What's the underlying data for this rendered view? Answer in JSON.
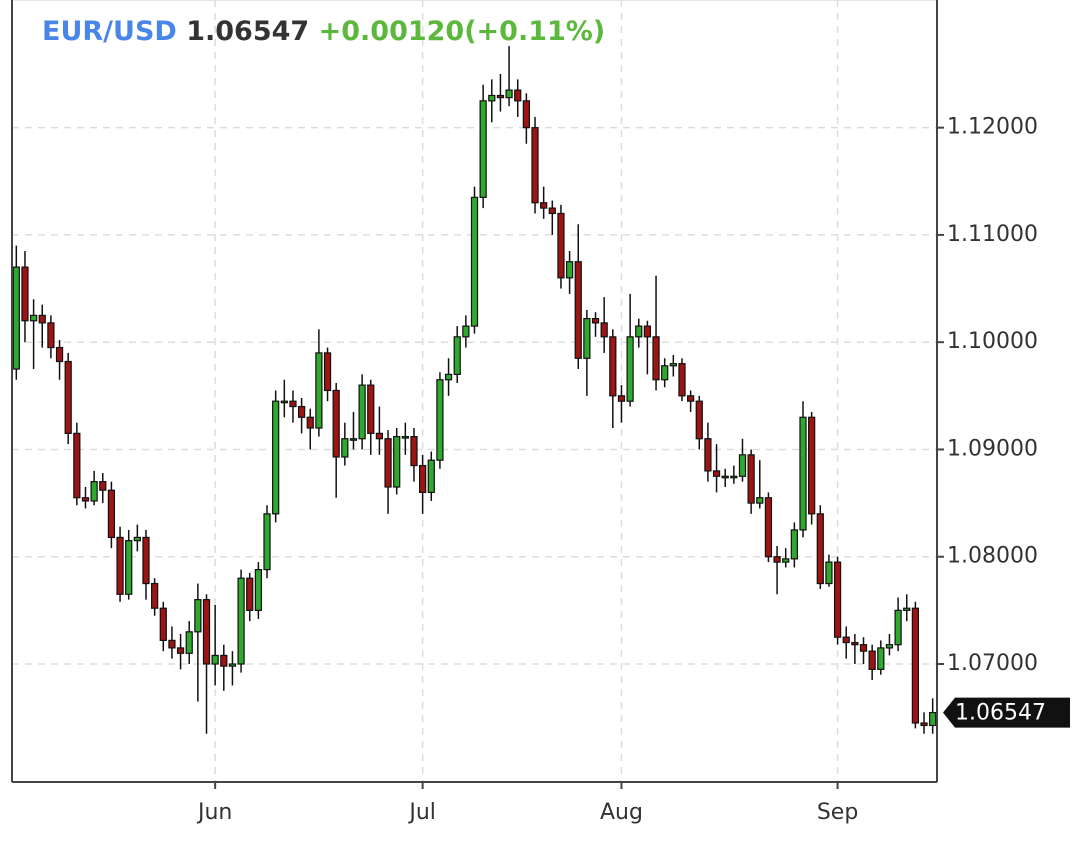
{
  "chart_data": {
    "type": "candlestick",
    "symbol": "EUR/USD",
    "last": "1.06547",
    "change": "+0.00120(+0.11%)",
    "up_color": "#2fa82f",
    "down_color": "#9c1414",
    "grid": true,
    "ylim": [
      1.059,
      1.1319
    ],
    "yticks": [
      {
        "value": 1.07,
        "label": "1.07000"
      },
      {
        "value": 1.08,
        "label": "1.08000"
      },
      {
        "value": 1.09,
        "label": "1.09000"
      },
      {
        "value": 1.1,
        "label": "1.10000"
      },
      {
        "value": 1.11,
        "label": "1.11000"
      },
      {
        "value": 1.12,
        "label": "1.12000"
      }
    ],
    "categories": [
      null,
      null,
      null,
      null,
      null,
      null,
      null,
      null,
      null,
      null,
      null,
      null,
      null,
      null,
      null,
      null,
      null,
      null,
      null,
      null,
      null,
      null,
      null,
      "Jun",
      null,
      null,
      null,
      null,
      null,
      null,
      null,
      null,
      null,
      null,
      null,
      null,
      null,
      null,
      null,
      null,
      null,
      null,
      null,
      null,
      null,
      null,
      null,
      "Jul",
      null,
      null,
      null,
      null,
      null,
      null,
      null,
      null,
      null,
      null,
      null,
      null,
      null,
      null,
      null,
      null,
      null,
      null,
      null,
      null,
      null,
      null,
      "Aug",
      null,
      null,
      null,
      null,
      null,
      null,
      null,
      null,
      null,
      null,
      null,
      null,
      null,
      null,
      null,
      null,
      null,
      null,
      null,
      null,
      null,
      null,
      null,
      null,
      "Sep",
      null,
      null,
      null,
      null,
      null,
      null,
      null,
      null,
      null,
      null,
      null
    ],
    "open": [
      1.0975,
      1.107,
      1.102,
      1.1025,
      1.1018,
      1.0995,
      1.0982,
      1.0915,
      1.0855,
      1.0852,
      1.087,
      1.0862,
      1.0818,
      1.0765,
      1.0815,
      1.0818,
      1.0775,
      1.0752,
      1.0722,
      1.0715,
      1.071,
      1.073,
      1.076,
      1.07,
      1.0708,
      1.0698,
      1.07,
      1.078,
      1.075,
      1.0788,
      1.084,
      1.0945,
      1.0945,
      1.094,
      1.093,
      1.092,
      1.099,
      1.0955,
      1.0893,
      1.091,
      1.091,
      1.096,
      1.0915,
      1.091,
      1.0865,
      1.0912,
      1.0912,
      1.0885,
      1.086,
      1.089,
      1.0965,
      1.097,
      1.1005,
      1.1015,
      1.1135,
      1.1225,
      1.123,
      1.1228,
      1.1235,
      1.1225,
      1.12,
      1.113,
      1.1125,
      1.112,
      1.106,
      1.1075,
      1.0985,
      1.1022,
      1.1018,
      1.1005,
      1.095,
      1.0945,
      1.1005,
      1.1015,
      1.1005,
      1.0965,
      1.0978,
      1.098,
      1.095,
      1.0945,
      1.091,
      1.088,
      1.0875,
      1.0875,
      1.0875,
      1.0895,
      1.085,
      1.0855,
      1.08,
      1.0795,
      1.0798,
      1.0825,
      1.093,
      1.084,
      1.0775,
      1.0795,
      1.0725,
      1.072,
      1.0718,
      1.0712,
      1.0695,
      1.0715,
      1.0718,
      1.075,
      1.0752,
      1.0645,
      1.06427
    ],
    "high": [
      1.109,
      1.1085,
      1.104,
      1.1035,
      1.1025,
      1.1002,
      1.099,
      1.0925,
      1.0865,
      1.088,
      1.0878,
      1.087,
      1.0828,
      1.0825,
      1.083,
      1.0825,
      1.078,
      1.0758,
      1.0735,
      1.0728,
      1.074,
      1.0775,
      1.0765,
      1.0755,
      1.0718,
      1.0712,
      1.0788,
      1.0785,
      1.0795,
      1.0848,
      1.0955,
      1.0965,
      1.0955,
      1.0948,
      1.0938,
      1.1012,
      1.0995,
      1.0962,
      1.0925,
      1.0935,
      1.097,
      1.0965,
      1.094,
      1.0918,
      1.092,
      1.0925,
      1.092,
      1.0895,
      1.0898,
      1.0972,
      1.0985,
      1.1015,
      1.1025,
      1.1145,
      1.124,
      1.1245,
      1.125,
      1.1276,
      1.1245,
      1.1232,
      1.121,
      1.1145,
      1.1132,
      1.1128,
      1.1085,
      1.111,
      1.103,
      1.1028,
      1.1042,
      1.1012,
      1.096,
      1.1045,
      1.1022,
      1.102,
      1.1062,
      1.0985,
      1.0988,
      1.0985,
      1.0955,
      1.095,
      1.0925,
      1.0905,
      1.0882,
      1.0885,
      1.091,
      1.09,
      1.089,
      1.086,
      1.081,
      1.0808,
      1.0832,
      1.0945,
      1.0935,
      1.0848,
      1.0802,
      1.08,
      1.0735,
      1.0728,
      1.0725,
      1.0718,
      1.0722,
      1.0728,
      1.0762,
      1.0765,
      1.0758,
      1.0655,
      1.0668
    ],
    "low": [
      1.0965,
      1.1,
      1.0975,
      1.0995,
      1.0985,
      1.0965,
      1.0905,
      1.0848,
      1.0845,
      1.0848,
      1.085,
      1.0808,
      1.0758,
      1.076,
      1.0805,
      1.076,
      1.0745,
      1.0712,
      1.0705,
      1.0695,
      1.07,
      1.0665,
      1.0635,
      1.068,
      1.0675,
      1.068,
      1.0692,
      1.074,
      1.0742,
      1.078,
      1.0832,
      1.093,
      1.0925,
      1.0915,
      1.09,
      1.0912,
      1.0945,
      1.0855,
      1.0885,
      1.09,
      1.09,
      1.0895,
      1.0895,
      1.084,
      1.0858,
      1.0895,
      1.087,
      1.084,
      1.0852,
      1.0882,
      1.095,
      1.0962,
      1.0995,
      1.1008,
      1.1125,
      1.1205,
      1.1215,
      1.122,
      1.121,
      1.1185,
      1.112,
      1.1115,
      1.11,
      1.105,
      1.1045,
      1.0975,
      1.095,
      1.1005,
      1.099,
      1.092,
      1.0925,
      1.094,
      1.0995,
      1.097,
      1.0955,
      1.0958,
      1.0968,
      1.0945,
      1.0935,
      1.09,
      1.087,
      1.086,
      1.0865,
      1.0868,
      1.087,
      1.084,
      1.0845,
      1.0795,
      1.0765,
      1.079,
      1.079,
      1.0818,
      1.083,
      1.077,
      1.0772,
      1.0718,
      1.0705,
      1.07,
      1.07,
      1.0685,
      1.069,
      1.0708,
      1.0712,
      1.074,
      1.064,
      1.0635,
      1.0635
    ],
    "close": [
      1.107,
      1.102,
      1.1025,
      1.1018,
      1.0995,
      1.0982,
      1.0915,
      1.0855,
      1.0852,
      1.087,
      1.0862,
      1.0818,
      1.0765,
      1.0815,
      1.0818,
      1.0775,
      1.0752,
      1.0722,
      1.0715,
      1.071,
      1.073,
      1.076,
      1.07,
      1.0708,
      1.0698,
      1.07,
      1.078,
      1.075,
      1.0788,
      1.084,
      1.0945,
      1.0945,
      1.094,
      1.093,
      1.092,
      1.099,
      1.0955,
      1.0893,
      1.091,
      1.091,
      1.096,
      1.0915,
      1.091,
      1.0865,
      1.0912,
      1.0912,
      1.0885,
      1.086,
      1.089,
      1.0965,
      1.097,
      1.1005,
      1.1015,
      1.1135,
      1.1225,
      1.123,
      1.1228,
      1.1235,
      1.1225,
      1.12,
      1.113,
      1.1125,
      1.112,
      1.106,
      1.1075,
      1.0985,
      1.1022,
      1.1018,
      1.1005,
      1.095,
      1.0945,
      1.1005,
      1.1015,
      1.1005,
      1.0965,
      1.0978,
      1.098,
      1.095,
      1.0945,
      1.091,
      1.088,
      1.0875,
      1.0875,
      1.0875,
      1.0895,
      1.085,
      1.0855,
      1.08,
      1.0795,
      1.0798,
      1.0825,
      1.093,
      1.084,
      1.0775,
      1.0795,
      1.0725,
      1.072,
      1.0718,
      1.0712,
      1.0695,
      1.0715,
      1.0718,
      1.075,
      1.0752,
      1.0645,
      1.06427,
      1.06547
    ]
  }
}
